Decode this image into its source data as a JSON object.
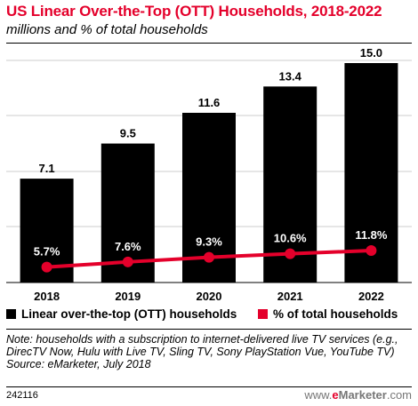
{
  "title": "US Linear Over-the-Top (OTT) Households, 2018-2022",
  "subtitle": "millions and % of total households",
  "chart_data": {
    "type": "bar",
    "categories": [
      "2018",
      "2019",
      "2020",
      "2021",
      "2022"
    ],
    "series": [
      {
        "name": "Linear over-the-top (OTT) households",
        "type": "bar",
        "values": [
          7.1,
          9.5,
          11.6,
          13.4,
          15.0
        ],
        "labels": [
          "7.1",
          "9.5",
          "11.6",
          "13.4",
          "15.0"
        ],
        "color": "#000000"
      },
      {
        "name": "% of total households",
        "type": "line",
        "values": [
          5.7,
          7.6,
          9.3,
          10.6,
          11.8
        ],
        "labels": [
          "5.7%",
          "7.6%",
          "9.3%",
          "10.6%",
          "11.8%"
        ],
        "color": "#e4002b"
      }
    ],
    "grid": true,
    "legend_position": "bottom"
  },
  "legend": {
    "bar_label": "Linear over-the-top (OTT) households",
    "line_label": "% of total households"
  },
  "note": "Note: households with a subscription to internet-delivered live TV services (e.g., DirecTV Now, Hulu with Live TV, Sling TV, Sony PlayStation Vue, YouTube TV)",
  "source": "Source: eMarketer, July 2018",
  "chart_code": "242116",
  "logo_prefix": "www.",
  "logo_brand_e": "e",
  "logo_brand_rest": "Marketer",
  "logo_suffix": ".com"
}
